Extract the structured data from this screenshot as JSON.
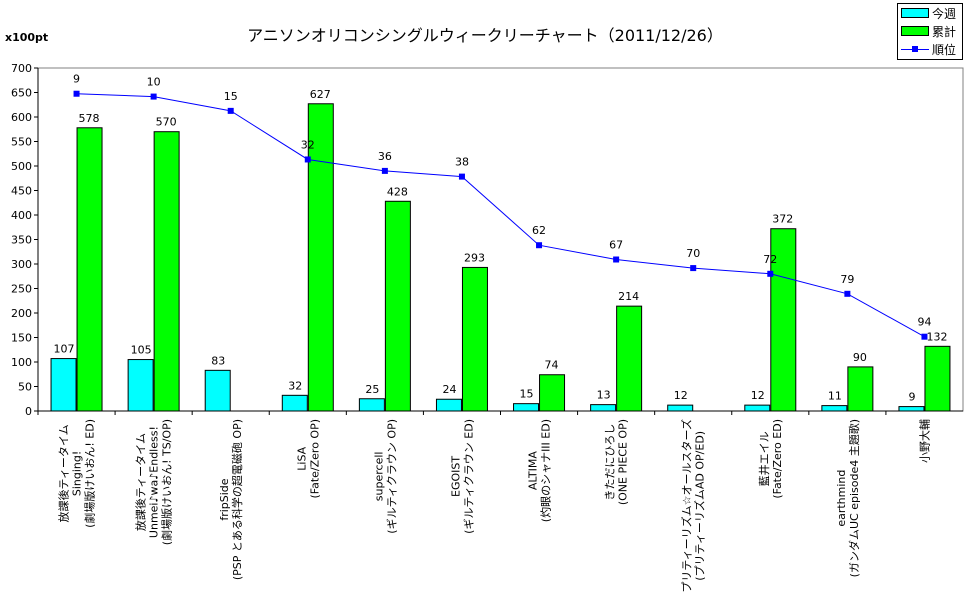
{
  "chart_data": {
    "type": "bar",
    "title": "アニソンオリコンシングルウィークリーチャート（2011/12/26）",
    "ylabel": "x100pt",
    "ylim": [
      0,
      700
    ],
    "yticks": [
      0,
      50,
      100,
      150,
      200,
      250,
      300,
      350,
      400,
      450,
      500,
      550,
      600,
      650,
      700
    ],
    "secondary_axis": {
      "hidden": true,
      "reversed": true,
      "range": [
        0,
        120
      ]
    },
    "grid": false,
    "legend_position": "top-right",
    "categories": [
      [
        "放課後ティータイム",
        "Singing!",
        "(劇場版けいおん! ED)"
      ],
      [
        "放課後ティータイム",
        "Unmei♪wa♪Endless!",
        "(劇場版けいおん! TS/OP)"
      ],
      [
        "fripSide",
        "(PSP とある科学の超電磁砲 OP)"
      ],
      [
        "LiSA",
        "(Fate/Zero OP)"
      ],
      [
        "supercell",
        "(ギルティクラウン OP)"
      ],
      [
        "EGOIST",
        "(ギルティクラウン ED)"
      ],
      [
        "ALTIMA",
        "(灼眼のシャナIII ED)"
      ],
      [
        "きただにひろし",
        "(ONE PIECE OP)"
      ],
      [
        "プリティーリズム☆オールスターズ",
        "(プリティーリズムAD OP/ED)"
      ],
      [
        "藍井エイル",
        "(Fate/Zero ED)"
      ],
      [
        "earthmind",
        "(ガンダムUC episode4 主題歌)"
      ],
      [
        "小野大輔"
      ]
    ],
    "series": [
      {
        "name": "今週",
        "type": "bar",
        "color": "#00ffff",
        "values": [
          107,
          105,
          83,
          32,
          25,
          24,
          15,
          13,
          12,
          12,
          11,
          9
        ]
      },
      {
        "name": "累計",
        "type": "bar",
        "color": "#00ff00",
        "values": [
          578,
          570,
          null,
          627,
          428,
          293,
          74,
          214,
          null,
          372,
          90,
          132
        ]
      },
      {
        "name": "順位",
        "type": "line",
        "axis": "secondary",
        "color": "#0000ff",
        "values": [
          9,
          10,
          15,
          32,
          36,
          38,
          62,
          67,
          70,
          72,
          79,
          94
        ]
      }
    ]
  }
}
